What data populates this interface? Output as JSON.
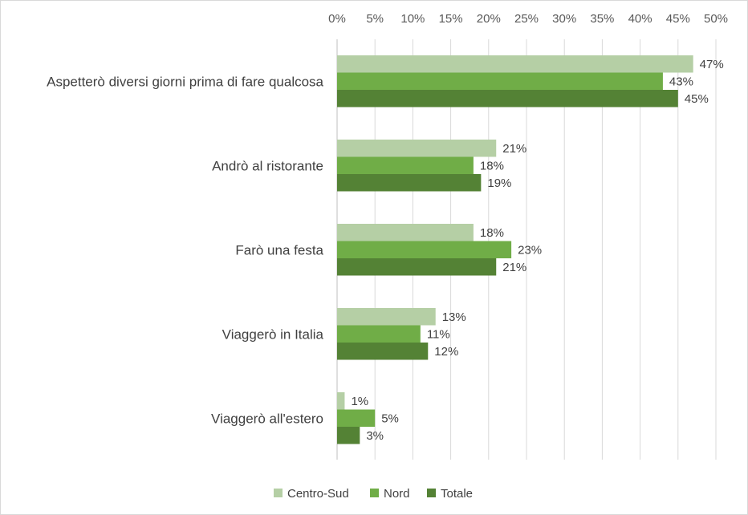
{
  "chart_data": {
    "type": "bar",
    "orientation": "horizontal",
    "x_axis_position": "top",
    "legend_position": "bottom",
    "grid": true,
    "xlim": [
      0,
      50
    ],
    "x_ticks": [
      "0%",
      "5%",
      "10%",
      "15%",
      "20%",
      "25%",
      "30%",
      "35%",
      "40%",
      "45%",
      "50%"
    ],
    "categories": [
      "Aspetterò diversi giorni prima di fare qualcosa",
      "Andrò al ristorante",
      "Farò una festa",
      "Viaggerò in Italia",
      "Viaggerò all'estero"
    ],
    "series": [
      {
        "name": "Centro-Sud",
        "color": "#b5cfa5",
        "values": [
          47,
          21,
          18,
          13,
          1
        ],
        "labels": [
          "47%",
          "21%",
          "18%",
          "13%",
          "1%"
        ]
      },
      {
        "name": "Nord",
        "color": "#70ad47",
        "values": [
          43,
          18,
          23,
          11,
          5
        ],
        "labels": [
          "43%",
          "18%",
          "23%",
          "11%",
          "5%"
        ]
      },
      {
        "name": "Totale",
        "color": "#548235",
        "values": [
          45,
          19,
          21,
          12,
          3
        ],
        "labels": [
          "45%",
          "19%",
          "21%",
          "12%",
          "3%"
        ]
      }
    ]
  }
}
